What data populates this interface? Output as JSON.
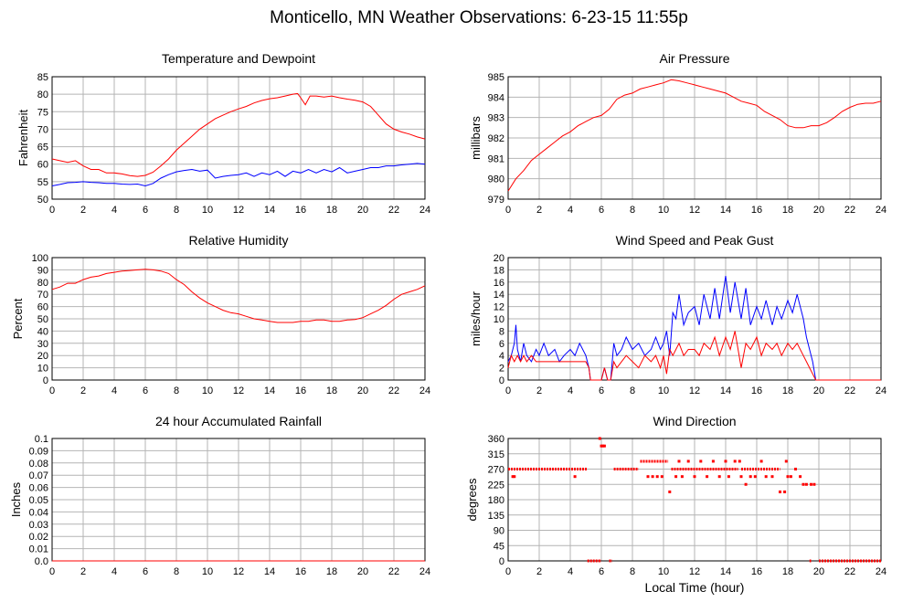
{
  "page": {
    "title": "Monticello, MN Weather Observations: 6-23-15 11:55p",
    "xlabel": "Local Time (hour)"
  },
  "chart_data": [
    {
      "id": "temp",
      "type": "line",
      "title": "Temperature and Dewpoint",
      "ylabel": "Fahrenheit",
      "xlim": [
        0,
        24
      ],
      "ylim": [
        50,
        85
      ],
      "xticks": [
        0,
        2,
        4,
        6,
        8,
        10,
        12,
        14,
        16,
        18,
        20,
        22,
        24
      ],
      "yticks": [
        50,
        55,
        60,
        65,
        70,
        75,
        80,
        85
      ],
      "grid": true,
      "series": [
        {
          "color": "#ff0000",
          "x": [
            0,
            0.5,
            1,
            1.5,
            2,
            2.5,
            3,
            3.5,
            4,
            4.5,
            5,
            5.5,
            6,
            6.5,
            7,
            7.5,
            8,
            8.5,
            9,
            9.5,
            10,
            10.5,
            11,
            11.5,
            12,
            12.5,
            13,
            13.5,
            14,
            14.5,
            15,
            15.5,
            15.8,
            16,
            16.3,
            16.6,
            17,
            17.5,
            18,
            18.5,
            19,
            19.5,
            20,
            20.5,
            21,
            21.5,
            22,
            22.5,
            23,
            23.5,
            24
          ],
          "y": [
            61.5,
            61,
            60.5,
            61,
            59.5,
            58.5,
            58.5,
            57.5,
            57.5,
            57.2,
            56.7,
            56.5,
            56.8,
            57.7,
            59.5,
            61.5,
            64,
            66,
            68,
            70,
            71.5,
            73,
            74,
            75,
            75.8,
            76.5,
            77.5,
            78.2,
            78.7,
            79,
            79.5,
            80,
            80.2,
            79,
            77,
            79.5,
            79.5,
            79.2,
            79.5,
            79,
            78.6,
            78.3,
            77.8,
            76.5,
            74,
            71.5,
            70,
            69.2,
            68.6,
            67.8,
            67.2
          ]
        },
        {
          "color": "#0000ff",
          "x": [
            0,
            0.5,
            1,
            1.5,
            2,
            2.5,
            3,
            3.5,
            4,
            4.5,
            5,
            5.5,
            6,
            6.5,
            7,
            7.5,
            8,
            8.5,
            9,
            9.5,
            10,
            10.5,
            11,
            11.5,
            12,
            12.5,
            13,
            13.5,
            14,
            14.5,
            15,
            15.5,
            16,
            16.5,
            17,
            17.5,
            18,
            18.5,
            19,
            19.5,
            20,
            20.5,
            21,
            21.5,
            22,
            22.5,
            23,
            23.5,
            24
          ],
          "y": [
            53.8,
            54.2,
            54.7,
            54.8,
            55,
            54.8,
            54.7,
            54.5,
            54.5,
            54.3,
            54.2,
            54.3,
            53.8,
            54.5,
            56,
            57,
            57.8,
            58.2,
            58.5,
            58,
            58.3,
            56,
            56.5,
            56.8,
            57,
            57.5,
            56.5,
            57.5,
            57,
            58,
            56.5,
            58,
            57.5,
            58.5,
            57.5,
            58.5,
            57.8,
            59,
            57.5,
            58,
            58.5,
            59,
            59,
            59.5,
            59.5,
            59.8,
            60,
            60.2,
            60
          ]
        }
      ]
    },
    {
      "id": "pressure",
      "type": "line",
      "title": "Air Pressure",
      "ylabel": "millibars",
      "xlim": [
        0,
        24
      ],
      "ylim": [
        979,
        985
      ],
      "xticks": [
        0,
        2,
        4,
        6,
        8,
        10,
        12,
        14,
        16,
        18,
        20,
        22,
        24
      ],
      "yticks": [
        979,
        980,
        981,
        982,
        983,
        984,
        985
      ],
      "grid": true,
      "series": [
        {
          "color": "#ff0000",
          "x": [
            0,
            0.5,
            1,
            1.5,
            2,
            2.5,
            3,
            3.5,
            4,
            4.5,
            5,
            5.5,
            6,
            6.5,
            7,
            7.5,
            8,
            8.5,
            9,
            9.5,
            10,
            10.5,
            11,
            11.5,
            12,
            12.5,
            13,
            13.5,
            14,
            14.5,
            15,
            15.5,
            16,
            16.5,
            17,
            17.5,
            18,
            18.5,
            19,
            19.5,
            20,
            20.5,
            21,
            21.5,
            22,
            22.5,
            23,
            23.5,
            24
          ],
          "y": [
            979.4,
            980,
            980.4,
            980.9,
            981.2,
            981.5,
            981.8,
            982.1,
            982.3,
            982.6,
            982.8,
            983,
            983.1,
            983.4,
            983.9,
            984.1,
            984.2,
            984.4,
            984.5,
            984.6,
            984.7,
            984.85,
            984.8,
            984.7,
            984.6,
            984.5,
            984.4,
            984.3,
            984.2,
            984.0,
            983.8,
            983.7,
            983.6,
            983.3,
            983.1,
            982.9,
            982.6,
            982.5,
            982.5,
            982.6,
            982.6,
            982.75,
            983,
            983.3,
            983.5,
            983.65,
            983.7,
            983.7,
            983.8
          ]
        }
      ]
    },
    {
      "id": "humidity",
      "type": "line",
      "title": "Relative Humidity",
      "ylabel": "Percent",
      "xlim": [
        0,
        24
      ],
      "ylim": [
        0,
        100
      ],
      "xticks": [
        0,
        2,
        4,
        6,
        8,
        10,
        12,
        14,
        16,
        18,
        20,
        22,
        24
      ],
      "yticks": [
        0,
        10,
        20,
        30,
        40,
        50,
        60,
        70,
        80,
        90,
        100
      ],
      "grid": true,
      "series": [
        {
          "color": "#ff0000",
          "x": [
            0,
            0.5,
            1,
            1.5,
            2,
            2.5,
            3,
            3.5,
            4,
            4.5,
            5,
            5.5,
            6,
            6.5,
            7,
            7.5,
            8,
            8.5,
            9,
            9.5,
            10,
            10.5,
            11,
            11.5,
            12,
            12.5,
            13,
            13.5,
            14,
            14.5,
            15,
            15.5,
            16,
            16.5,
            17,
            17.5,
            18,
            18.5,
            19,
            19.5,
            20,
            20.5,
            21,
            21.5,
            22,
            22.5,
            23,
            23.5,
            24
          ],
          "y": [
            74,
            76,
            79,
            79,
            82,
            84,
            85,
            87,
            88,
            89,
            89.5,
            90,
            90.5,
            90,
            89,
            87,
            82,
            78,
            72,
            67,
            63,
            60,
            57,
            55,
            54,
            52,
            50,
            49,
            48,
            47,
            47,
            47,
            48,
            48,
            49,
            49,
            48,
            48,
            49,
            49.5,
            51,
            54,
            57,
            61,
            66,
            70,
            72,
            74,
            77
          ]
        }
      ]
    },
    {
      "id": "wind",
      "type": "line",
      "title": "Wind Speed and Peak Gust",
      "ylabel": "miles/hour",
      "xlim": [
        0,
        24
      ],
      "ylim": [
        0,
        20
      ],
      "xticks": [
        0,
        2,
        4,
        6,
        8,
        10,
        12,
        14,
        16,
        18,
        20,
        22,
        24
      ],
      "yticks": [
        0,
        2,
        4,
        6,
        8,
        10,
        12,
        14,
        16,
        18,
        20
      ],
      "grid": true,
      "series": [
        {
          "color": "#0000ff",
          "x": [
            0,
            0.2,
            0.4,
            0.5,
            0.6,
            0.8,
            1,
            1.2,
            1.5,
            1.8,
            2,
            2.3,
            2.6,
            3,
            3.3,
            3.6,
            4,
            4.3,
            4.6,
            5,
            5.2,
            5.3,
            5.7,
            6,
            6.2,
            6.4,
            6.6,
            6.8,
            7,
            7.3,
            7.6,
            8,
            8.4,
            8.8,
            9.2,
            9.5,
            9.8,
            10,
            10.2,
            10.4,
            10.6,
            10.8,
            11,
            11.3,
            11.6,
            12,
            12.3,
            12.6,
            13,
            13.3,
            13.6,
            14,
            14.3,
            14.6,
            15,
            15.3,
            15.6,
            16,
            16.3,
            16.6,
            17,
            17.3,
            17.6,
            18,
            18.3,
            18.6,
            19,
            19.2,
            19.4,
            19.6,
            19.8,
            20,
            21,
            22,
            23,
            24
          ],
          "y": [
            3,
            4,
            6,
            9,
            5,
            3,
            6,
            4,
            3,
            5,
            4,
            6,
            4,
            5,
            3,
            4,
            5,
            4,
            6,
            4,
            2,
            0,
            0,
            0,
            2,
            0,
            0,
            6,
            4,
            5,
            7,
            5,
            6,
            4,
            5,
            7,
            5,
            6,
            8,
            4,
            11,
            10,
            14,
            9,
            11,
            12,
            9,
            14,
            10,
            15,
            10,
            17,
            11,
            16,
            10,
            15,
            9,
            12,
            10,
            13,
            9,
            12,
            10,
            13,
            11,
            14,
            10,
            7,
            5,
            3,
            0,
            0,
            0,
            0,
            0,
            0
          ]
        },
        {
          "color": "#ff0000",
          "x": [
            0,
            0.2,
            0.4,
            0.6,
            0.8,
            1,
            1.2,
            1.5,
            1.8,
            2,
            2.5,
            3,
            3.5,
            4,
            4.5,
            5,
            5.2,
            5.3,
            5.7,
            6,
            6.2,
            6.4,
            6.6,
            6.8,
            7,
            7.3,
            7.6,
            8,
            8.4,
            8.8,
            9.2,
            9.5,
            9.8,
            10,
            10.2,
            10.4,
            10.6,
            10.8,
            11,
            11.3,
            11.6,
            12,
            12.3,
            12.6,
            13,
            13.3,
            13.6,
            14,
            14.3,
            14.6,
            15,
            15.3,
            15.6,
            16,
            16.3,
            16.6,
            17,
            17.3,
            17.6,
            18,
            18.3,
            18.6,
            19,
            19.2,
            19.4,
            19.6,
            19.8,
            20,
            21,
            22,
            23,
            24
          ],
          "y": [
            2,
            4,
            3,
            4,
            3,
            4,
            3,
            4,
            3,
            3,
            3,
            3,
            3,
            3,
            3,
            3,
            2,
            0,
            0,
            0,
            2,
            0,
            0,
            3,
            2,
            3,
            4,
            3,
            2,
            4,
            3,
            4,
            2,
            4,
            1,
            5,
            4,
            5,
            6,
            4,
            5,
            5,
            4,
            6,
            5,
            7,
            4,
            7,
            5,
            8,
            2,
            6,
            5,
            7,
            4,
            6,
            5,
            6,
            4,
            6,
            5,
            6,
            4,
            3,
            2,
            1,
            0,
            0,
            0,
            0,
            0,
            0
          ]
        }
      ]
    },
    {
      "id": "rain",
      "type": "line",
      "title": "24 hour Accumulated Rainfall",
      "ylabel": "Inches",
      "xlim": [
        0,
        24
      ],
      "ylim": [
        0,
        0.1
      ],
      "xticks": [
        0,
        2,
        4,
        6,
        8,
        10,
        12,
        14,
        16,
        18,
        20,
        22,
        24
      ],
      "yticks": [
        "0.0",
        "0.01",
        "0.02",
        "0.03",
        "0.04",
        "0.05",
        "0.06",
        "0.07",
        "0.08",
        "0.09",
        "0.1"
      ],
      "grid": true,
      "series": [
        {
          "color": "#ff0000",
          "x": [
            0,
            24
          ],
          "y": [
            0,
            0
          ]
        }
      ]
    },
    {
      "id": "winddir",
      "type": "scatter",
      "title": "Wind Direction",
      "ylabel": "degrees",
      "xlim": [
        0,
        24
      ],
      "ylim": [
        0,
        360
      ],
      "xticks": [
        0,
        2,
        4,
        6,
        8,
        10,
        12,
        14,
        16,
        18,
        20,
        22,
        24
      ],
      "yticks": [
        0,
        45,
        90,
        135,
        180,
        225,
        270,
        315,
        360
      ],
      "grid": true,
      "series": [
        {
          "color": "#ff0000",
          "segments": [
            {
              "x0": 0,
              "x1": 5.1,
              "y": 270
            },
            {
              "x0": 5.1,
              "x1": 6.0,
              "y": 0
            },
            {
              "x0": 6.5,
              "x1": 6.7,
              "y": 0
            },
            {
              "x0": 6.8,
              "x1": 8.4,
              "y": 270
            },
            {
              "x0": 8.5,
              "x1": 10.3,
              "y": 293
            },
            {
              "x0": 10.5,
              "x1": 14.8,
              "y": 270
            },
            {
              "x0": 15,
              "x1": 17.5,
              "y": 270
            },
            {
              "x0": 19.4,
              "x1": 19.5,
              "y": 0
            },
            {
              "x0": 20,
              "x1": 24,
              "y": 0
            }
          ],
          "points": [
            [
              0.3,
              248
            ],
            [
              0.4,
              248
            ],
            [
              4.3,
              248
            ],
            [
              5.9,
              360
            ],
            [
              6.0,
              338
            ],
            [
              6.1,
              338
            ],
            [
              6.2,
              338
            ],
            [
              9.0,
              248
            ],
            [
              9.3,
              248
            ],
            [
              9.6,
              248
            ],
            [
              9.9,
              248
            ],
            [
              10.4,
              203
            ],
            [
              10.8,
              248
            ],
            [
              11.0,
              293
            ],
            [
              11.2,
              248
            ],
            [
              11.6,
              293
            ],
            [
              12.0,
              248
            ],
            [
              12.4,
              293
            ],
            [
              12.8,
              248
            ],
            [
              13.2,
              293
            ],
            [
              13.6,
              248
            ],
            [
              14.0,
              293
            ],
            [
              14.2,
              248
            ],
            [
              14.6,
              293
            ],
            [
              14.9,
              293
            ],
            [
              15.0,
              248
            ],
            [
              15.3,
              225
            ],
            [
              15.6,
              248
            ],
            [
              15.9,
              248
            ],
            [
              16.3,
              293
            ],
            [
              16.6,
              248
            ],
            [
              17.0,
              248
            ],
            [
              17.5,
              203
            ],
            [
              17.8,
              203
            ],
            [
              17.9,
              293
            ],
            [
              18.0,
              248
            ],
            [
              18.2,
              248
            ],
            [
              18.5,
              270
            ],
            [
              18.8,
              248
            ],
            [
              19.0,
              225
            ],
            [
              19.2,
              225
            ],
            [
              19.5,
              225
            ],
            [
              19.7,
              225
            ]
          ]
        }
      ]
    }
  ]
}
